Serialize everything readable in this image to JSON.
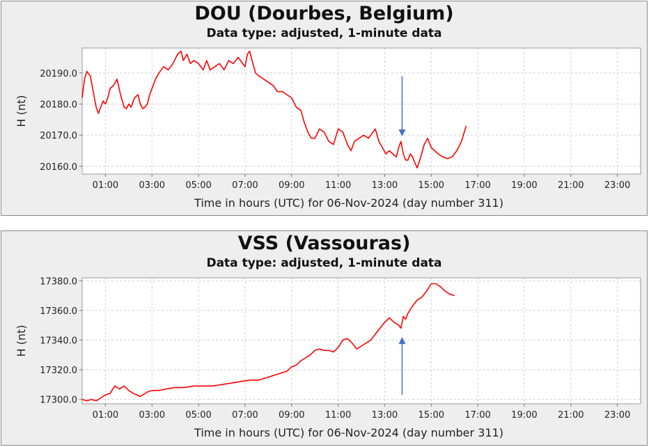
{
  "chart_data": [
    {
      "type": "line",
      "title": "DOU (Dourbes, Belgium)",
      "subtitle": "Data type: adjusted, 1-minute data",
      "xlabel": "Time in hours (UTC) for 06-Nov-2024 (day number 311)",
      "ylabel": "H (nt)",
      "xlim": [
        0,
        24
      ],
      "ylim": [
        20157.5,
        20198
      ],
      "x_ticks": [
        1,
        3,
        5,
        7,
        9,
        11,
        13,
        15,
        17,
        19,
        21,
        23
      ],
      "x_tick_labels": [
        "01:00",
        "03:00",
        "05:00",
        "07:00",
        "09:00",
        "11:00",
        "13:00",
        "15:00",
        "17:00",
        "19:00",
        "21:00",
        "23:00"
      ],
      "y_ticks": [
        20160,
        20170,
        20180,
        20190
      ],
      "y_tick_labels": [
        "20160.0",
        "20170.0",
        "20180.0",
        "20190.0"
      ],
      "grid": true,
      "series_color": "#ff0000",
      "annotation_color": "#4472c4",
      "series": [
        {
          "x": [
            0.0,
            0.1,
            0.2,
            0.35,
            0.5,
            0.6,
            0.7,
            0.8,
            0.9,
            1.0,
            1.1,
            1.2,
            1.35,
            1.5,
            1.65,
            1.8,
            1.9,
            2.0,
            2.1,
            2.25,
            2.4,
            2.5,
            2.6,
            2.7,
            2.8,
            2.9,
            3.0,
            3.15,
            3.3,
            3.5,
            3.7,
            3.9,
            4.1,
            4.25,
            4.35,
            4.5,
            4.65,
            4.8,
            5.0,
            5.2,
            5.35,
            5.5,
            5.7,
            5.9,
            6.1,
            6.3,
            6.5,
            6.7,
            6.9,
            7.0,
            7.1,
            7.2,
            7.3,
            7.45,
            7.6,
            7.8,
            8.0,
            8.2,
            8.4,
            8.6,
            8.8,
            9.0,
            9.2,
            9.4,
            9.55,
            9.7,
            9.85,
            10.0,
            10.2,
            10.4,
            10.6,
            10.8,
            11.0,
            11.2,
            11.4,
            11.55,
            11.7,
            11.9,
            12.1,
            12.3,
            12.5,
            12.6,
            12.75,
            12.9,
            13.05,
            13.2,
            13.35,
            13.5,
            13.6,
            13.7,
            13.8,
            13.9,
            14.0,
            14.1,
            14.2,
            14.3,
            14.4,
            14.55,
            14.7,
            14.85,
            15.0,
            15.15,
            15.3,
            15.5,
            15.7,
            15.9,
            16.1,
            16.3,
            16.5
          ],
          "y": [
            20182,
            20188,
            20190.5,
            20189,
            20183,
            20179,
            20177,
            20179,
            20181,
            20180,
            20182,
            20185,
            20186,
            20188,
            20183,
            20179,
            20178.5,
            20180,
            20179,
            20182,
            20183,
            20180,
            20178.5,
            20179,
            20180,
            20183,
            20185,
            20188,
            20190,
            20192,
            20191,
            20193,
            20196,
            20197,
            20194,
            20196,
            20193,
            20194,
            20193,
            20191,
            20194,
            20191,
            20192,
            20193,
            20191,
            20194,
            20193,
            20195,
            20193,
            20192,
            20196,
            20197,
            20194,
            20190,
            20189,
            20188,
            20187,
            20186,
            20184,
            20184,
            20183,
            20182,
            20179,
            20178,
            20174,
            20171,
            20169,
            20169,
            20172,
            20171,
            20168,
            20167,
            20172,
            20171,
            20167,
            20165,
            20168,
            20169,
            20170,
            20169,
            20171,
            20172,
            20168,
            20166,
            20164,
            20165,
            20164,
            20163,
            20166,
            20168,
            20164,
            20162,
            20162,
            20164,
            20163,
            20161,
            20159.5,
            20163,
            20167,
            20169,
            20166,
            20165,
            20164,
            20163,
            20162.5,
            20163,
            20165,
            20168,
            20173
          ]
        }
      ]
    },
    {
      "type": "line",
      "title": "VSS (Vassouras)",
      "subtitle": "Data type: adjusted, 1-minute data",
      "xlabel": "Time in hours (UTC) for 06-Nov-2024 (day number 311)",
      "ylabel": "H (nt)",
      "xlim": [
        0,
        24
      ],
      "ylim": [
        17297,
        17382
      ],
      "x_ticks": [
        1,
        3,
        5,
        7,
        9,
        11,
        13,
        15,
        17,
        19,
        21,
        23
      ],
      "x_tick_labels": [
        "01:00",
        "03:00",
        "05:00",
        "07:00",
        "09:00",
        "11:00",
        "13:00",
        "15:00",
        "17:00",
        "19:00",
        "21:00",
        "23:00"
      ],
      "y_ticks": [
        17300,
        17320,
        17340,
        17360,
        17380
      ],
      "y_tick_labels": [
        "17300.0",
        "17320.0",
        "17340.0",
        "17360.0",
        "17380.0"
      ],
      "grid": true,
      "series_color": "#ff0000",
      "annotation_color": "#4472c4",
      "series": [
        {
          "x": [
            0.0,
            0.2,
            0.4,
            0.6,
            0.8,
            1.0,
            1.2,
            1.4,
            1.6,
            1.8,
            2.0,
            2.2,
            2.5,
            2.8,
            3.0,
            3.3,
            3.6,
            4.0,
            4.4,
            4.8,
            5.2,
            5.6,
            6.0,
            6.4,
            6.8,
            7.2,
            7.6,
            8.0,
            8.4,
            8.8,
            9.0,
            9.2,
            9.4,
            9.6,
            9.8,
            10.0,
            10.2,
            10.4,
            10.6,
            10.8,
            11.0,
            11.2,
            11.4,
            11.6,
            11.8,
            12.0,
            12.2,
            12.4,
            12.6,
            12.8,
            13.0,
            13.2,
            13.4,
            13.6,
            13.7,
            13.8,
            13.9,
            14.0,
            14.2,
            14.4,
            14.6,
            14.8,
            15.0,
            15.2,
            15.4,
            15.6,
            15.8,
            16.0
          ],
          "y": [
            17300,
            17299,
            17300,
            17299,
            17301,
            17303,
            17304,
            17309,
            17307,
            17309,
            17306,
            17304,
            17302,
            17305,
            17306,
            17306,
            17307,
            17308,
            17308,
            17309,
            17309,
            17309,
            17310,
            17311,
            17312,
            17313,
            17313,
            17315,
            17317,
            17319,
            17322,
            17323,
            17326,
            17328,
            17330,
            17333,
            17334,
            17333,
            17333,
            17332,
            17335,
            17340,
            17341,
            17338,
            17334,
            17336,
            17338,
            17340,
            17344,
            17348,
            17352,
            17355,
            17352,
            17350,
            17348,
            17356,
            17354,
            17358,
            17363,
            17367,
            17369,
            17373,
            17378,
            17378,
            17376,
            17373,
            17371,
            17370
          ]
        }
      ]
    }
  ]
}
